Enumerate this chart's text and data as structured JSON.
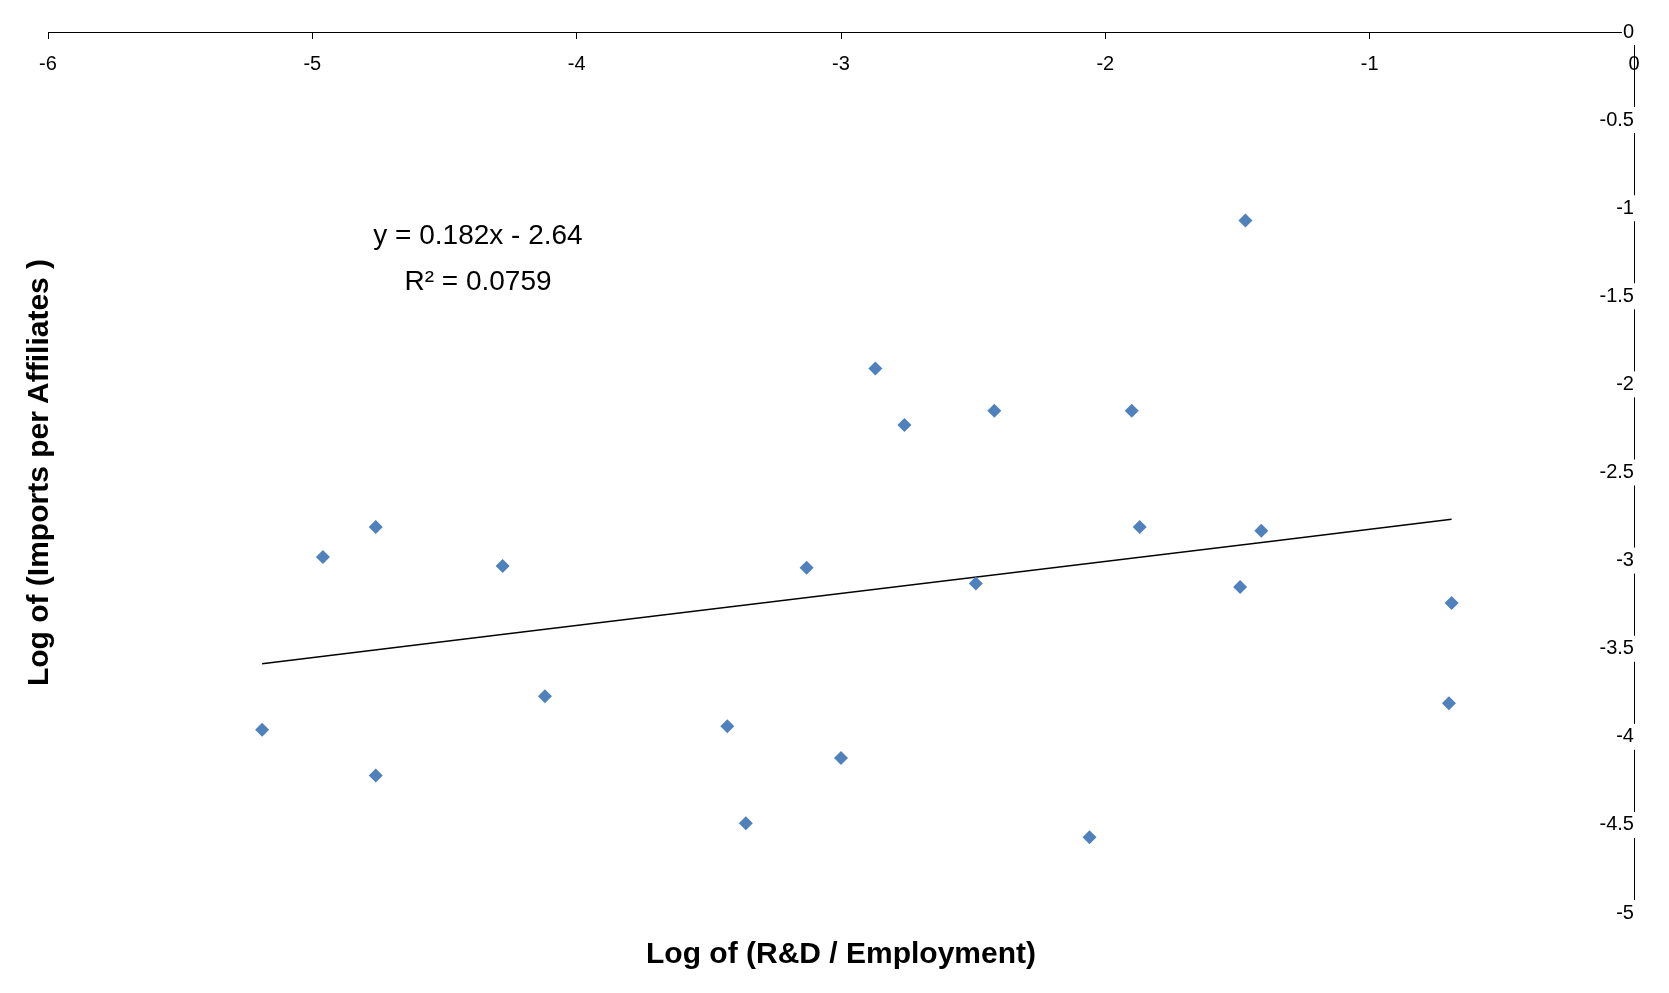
{
  "chart_data": {
    "type": "scatter",
    "xlabel": "Log of (R&D / Employment)",
    "ylabel": "Log of (Imports per Affiliates )",
    "annotations": [
      "y = 0.182x - 2.64",
      "R² = 0.0759"
    ],
    "xlim": [
      -6,
      0
    ],
    "xticks": [
      -6,
      -5,
      -4,
      -3,
      -2,
      -1,
      0
    ],
    "ylim": [
      -5,
      0
    ],
    "yticks": [
      0,
      -0.5,
      -1,
      -1.5,
      -2,
      -2.5,
      -3,
      -3.5,
      -4,
      -4.5,
      -5
    ],
    "grid": false,
    "legend": false,
    "marker": "diamond",
    "series": [
      {
        "type": "scatter",
        "color": "#4f81bd",
        "x": [
          -5.19,
          -4.96,
          -4.76,
          -4.76,
          -4.28,
          -4.12,
          -3.43,
          -3.36,
          -3.13,
          -3.0,
          -2.87,
          -2.76,
          -2.49,
          -2.42,
          -2.06,
          -1.9,
          -1.87,
          -1.47,
          -1.49,
          -1.41,
          -0.7,
          -0.69
        ],
        "values": [
          -3.96,
          -2.98,
          -2.81,
          -4.22,
          -3.03,
          -3.77,
          -3.94,
          -4.49,
          -3.04,
          -4.12,
          -1.91,
          -2.23,
          -3.13,
          -2.15,
          -4.57,
          -2.15,
          -2.81,
          -1.07,
          -3.15,
          -2.83,
          -3.81,
          -3.24
        ]
      },
      {
        "type": "line",
        "color": "#000000",
        "marker": "none",
        "x": [
          -5.19,
          -0.69
        ],
        "values": [
          -3.585,
          -2.766
        ]
      }
    ]
  }
}
